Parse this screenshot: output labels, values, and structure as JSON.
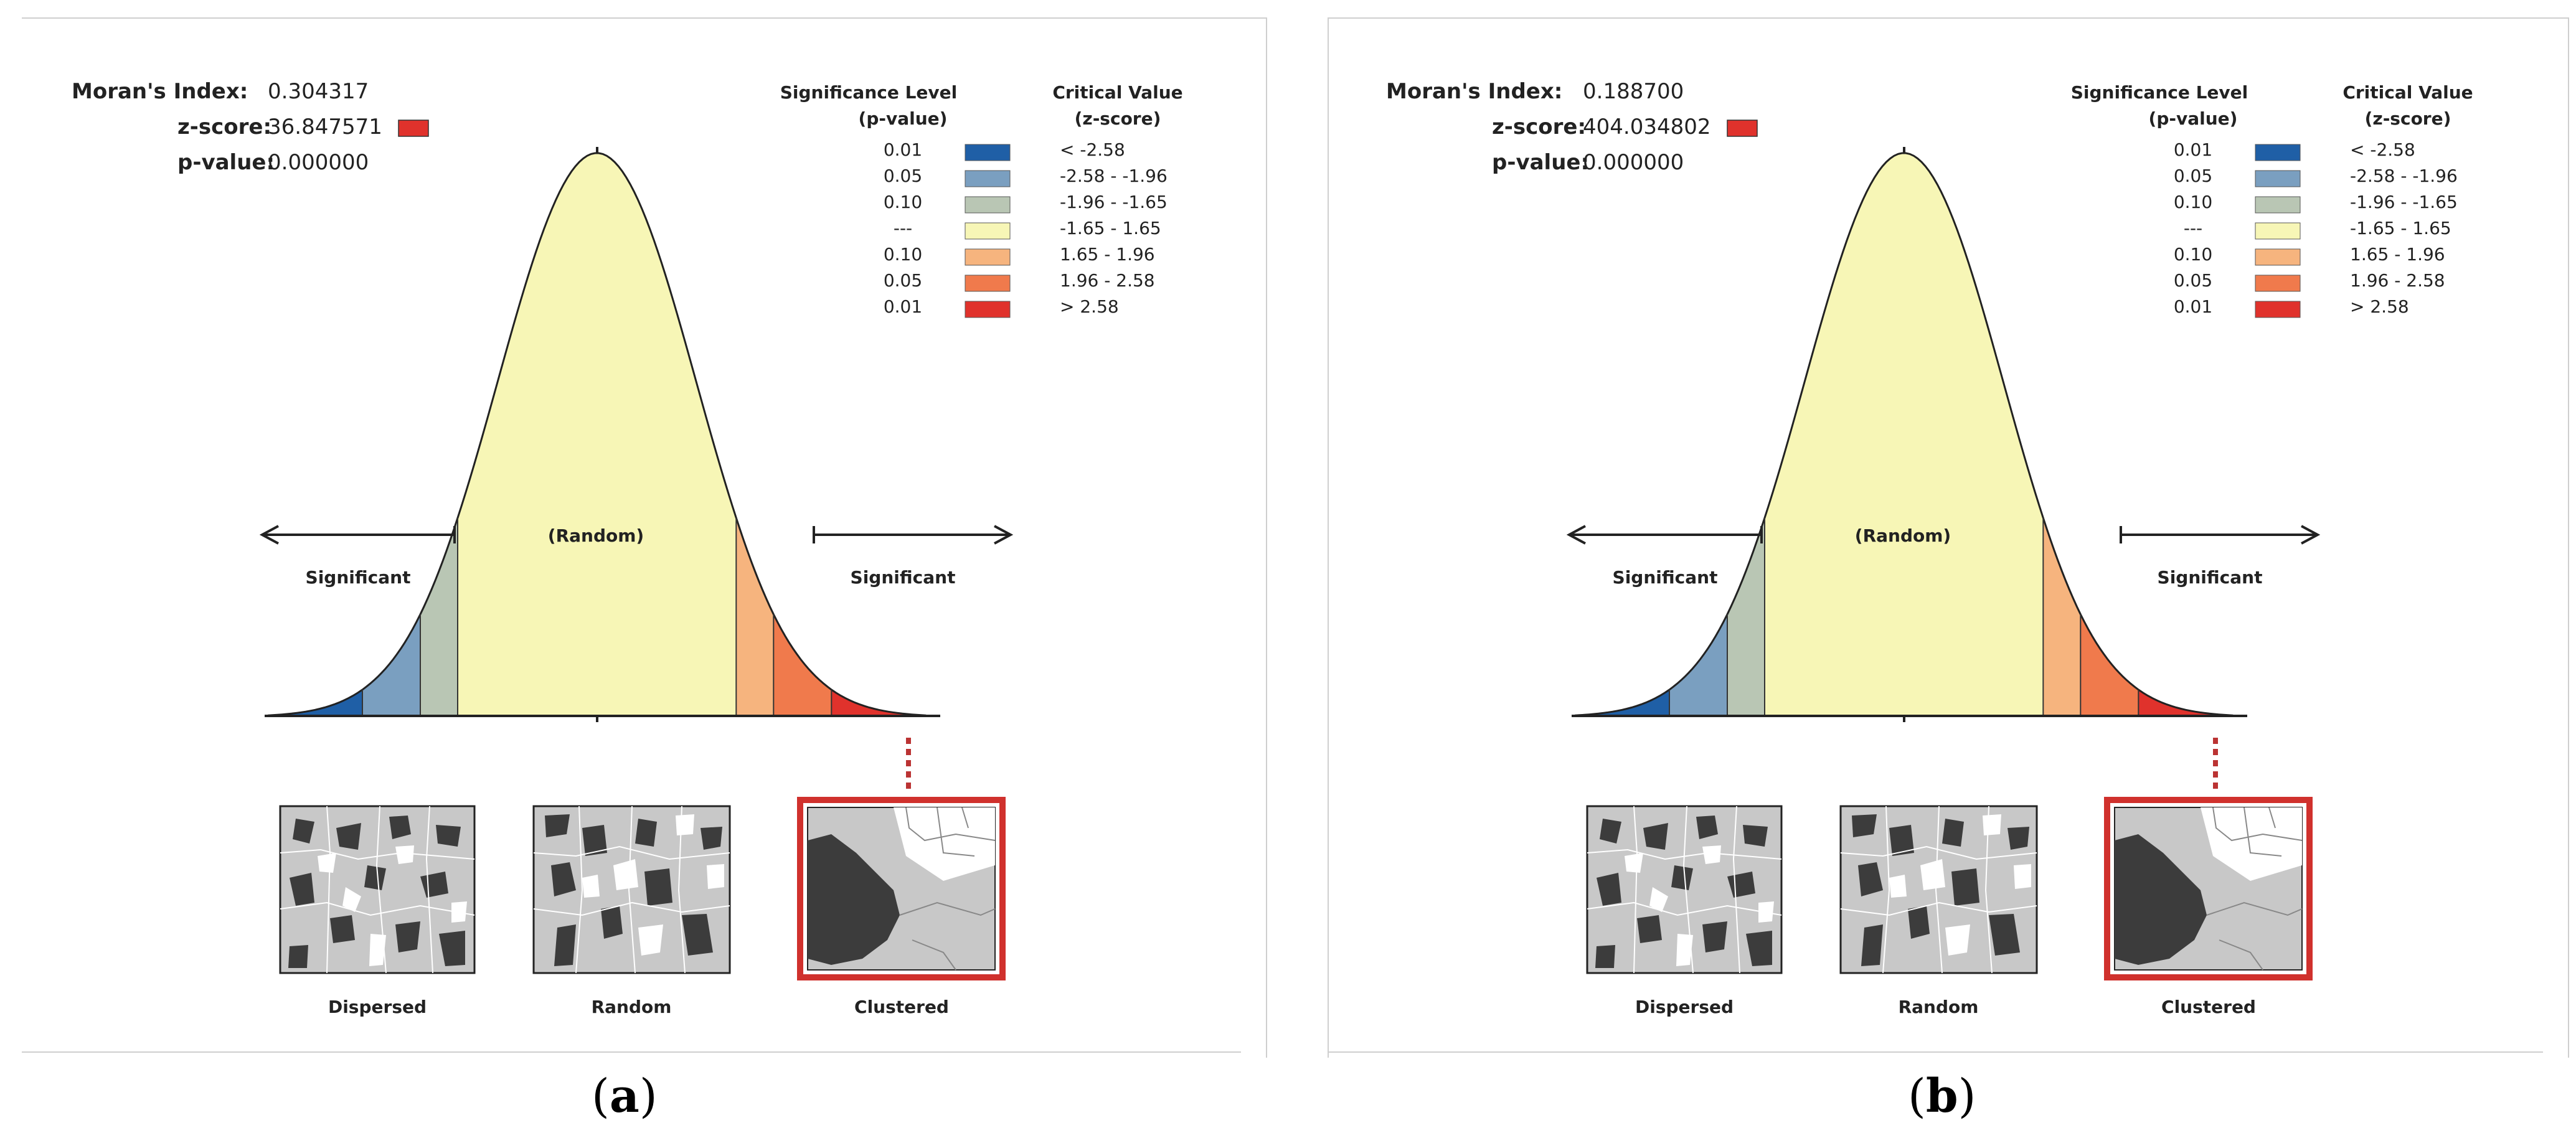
{
  "panels": [
    {
      "caption_letter": "a",
      "moran_label": "Moran's Index:",
      "moran_value": "0.304317",
      "z_label": "z-score:",
      "z_value": "36.847571",
      "p_label": "p-value:",
      "p_value": "0.000000"
    },
    {
      "caption_letter": "b",
      "moran_label": "Moran's Index:",
      "moran_value": "0.188700",
      "z_label": "z-score:",
      "z_value": "404.034802",
      "p_label": "p-value:",
      "p_value": "0.000000"
    }
  ],
  "legend": {
    "sig_header_1": "Significance Level",
    "sig_header_2": "(p-value)",
    "crit_header_1": "Critical Value",
    "crit_header_2": "(z-score)",
    "rows": [
      {
        "p": "0.01",
        "z": "< -2.58",
        "color": "#1f5fa6"
      },
      {
        "p": "0.05",
        "z": "-2.58 - -1.96",
        "color": "#7a9fc0"
      },
      {
        "p": "0.10",
        "z": "-1.96 - -1.65",
        "color": "#b9c6b4"
      },
      {
        "p": "---",
        "z": "-1.65 - 1.65",
        "color": "#f7f6b6"
      },
      {
        "p": "0.10",
        "z": "1.65 - 1.96",
        "color": "#f6b47e"
      },
      {
        "p": "0.05",
        "z": "1.96 - 2.58",
        "color": "#f07a4c"
      },
      {
        "p": "0.01",
        "z": "> 2.58",
        "color": "#e0322c"
      }
    ]
  },
  "curve_labels": {
    "random": "(Random)",
    "significant_left": "Significant",
    "significant_right": "Significant"
  },
  "patterns": {
    "dispersed": "Dispersed",
    "random": "Random",
    "clustered": "Clustered"
  },
  "colors": {
    "highlight": "#d0312d",
    "z_marker": "#e0322c",
    "dark_cell": "#3c3c3c",
    "light_cell": "#c8c8c8"
  }
}
